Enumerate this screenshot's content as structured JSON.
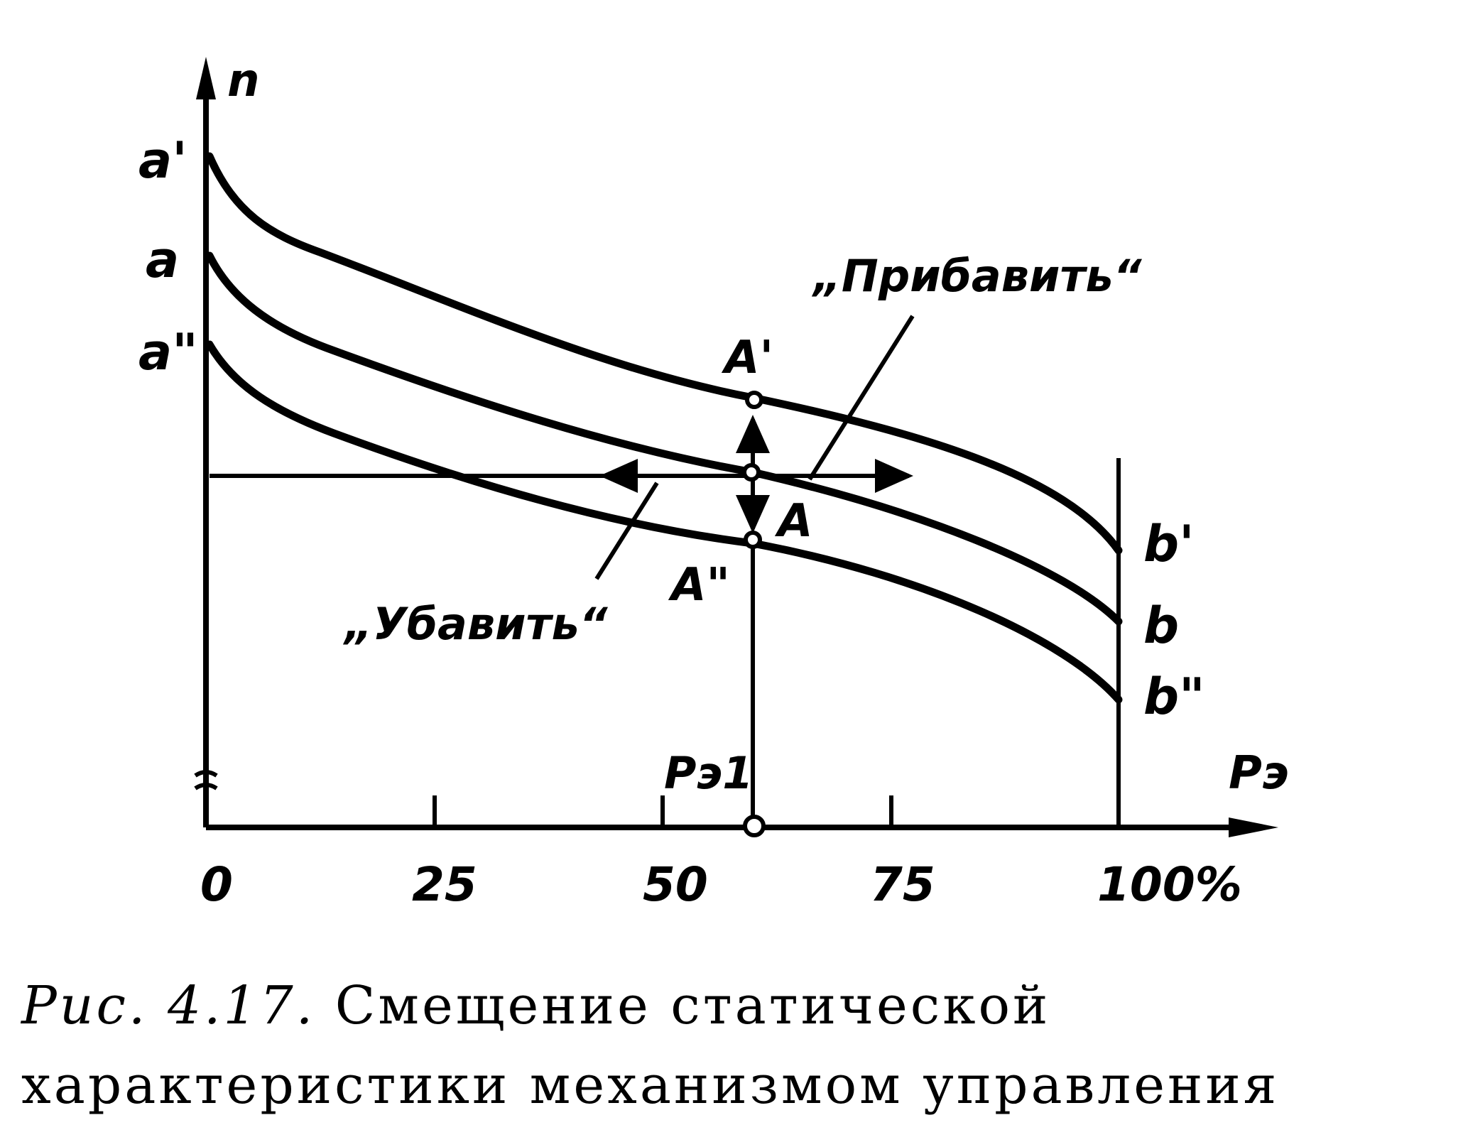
{
  "diagram": {
    "y_axis_label": "n",
    "x_axis_label": "Pэ",
    "x_ticks": [
      "0",
      "25",
      "50",
      "75",
      "100%"
    ],
    "curve_start_labels": [
      "a'",
      "a",
      "a\""
    ],
    "curve_end_labels": [
      "b'",
      "b",
      "b\""
    ],
    "point_labels": {
      "upper": "A'",
      "middle": "A",
      "lower": "A\""
    },
    "operating_load_label": "Pэ1",
    "increase_label": "„Прибавить“",
    "decrease_label": "„Убавить“"
  },
  "caption": {
    "figure_number": "Рис. 4.17.",
    "text": "Смещение статической характеристики механизмом управления"
  }
}
